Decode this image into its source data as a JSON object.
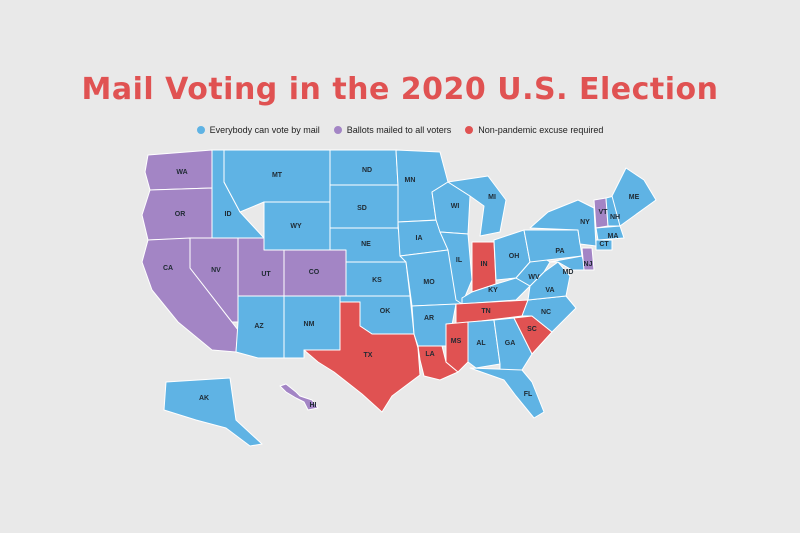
{
  "title": "Mail Voting in the 2020 U.S. Election",
  "legend": [
    {
      "label": "Everybody can vote by mail",
      "color": "#5fb3e4"
    },
    {
      "label": "Ballots mailed to all voters",
      "color": "#a385c5"
    },
    {
      "label": "Non-pandemic excuse required",
      "color": "#e05252"
    }
  ],
  "colors": {
    "mail": "#5fb3e4",
    "all": "#a385c5",
    "excuse": "#e05252",
    "background": "#e9e9e9"
  },
  "states": {
    "WA": "Ballots mailed to all voters",
    "OR": "Ballots mailed to all voters",
    "CA": "Ballots mailed to all voters",
    "NV": "Ballots mailed to all voters",
    "UT": "Ballots mailed to all voters",
    "CO": "Ballots mailed to all voters",
    "HI": "Ballots mailed to all voters",
    "VT": "Ballots mailed to all voters",
    "NJ": "Ballots mailed to all voters",
    "TX": "Non-pandemic excuse required",
    "LA": "Non-pandemic excuse required",
    "MS": "Non-pandemic excuse required",
    "TN": "Non-pandemic excuse required",
    "IN": "Non-pandemic excuse required",
    "SC": "Non-pandemic excuse required",
    "ID": "Everybody can vote by mail",
    "MT": "Everybody can vote by mail",
    "WY": "Everybody can vote by mail",
    "ND": "Everybody can vote by mail",
    "SD": "Everybody can vote by mail",
    "NE": "Everybody can vote by mail",
    "KS": "Everybody can vote by mail",
    "OK": "Everybody can vote by mail",
    "AZ": "Everybody can vote by mail",
    "NM": "Everybody can vote by mail",
    "MN": "Everybody can vote by mail",
    "IA": "Everybody can vote by mail",
    "MO": "Everybody can vote by mail",
    "AR": "Everybody can vote by mail",
    "WI": "Everybody can vote by mail",
    "IL": "Everybody can vote by mail",
    "MI": "Everybody can vote by mail",
    "OH": "Everybody can vote by mail",
    "KY": "Everybody can vote by mail",
    "AL": "Everybody can vote by mail",
    "GA": "Everybody can vote by mail",
    "FL": "Everybody can vote by mail",
    "WV": "Everybody can vote by mail",
    "VA": "Everybody can vote by mail",
    "NC": "Everybody can vote by mail",
    "PA": "Everybody can vote by mail",
    "NY": "Everybody can vote by mail",
    "MD": "Everybody can vote by mail",
    "ME": "Everybody can vote by mail",
    "NH": "Everybody can vote by mail",
    "MA": "Everybody can vote by mail",
    "CT": "Everybody can vote by mail",
    "AK": "Everybody can vote by mail"
  }
}
